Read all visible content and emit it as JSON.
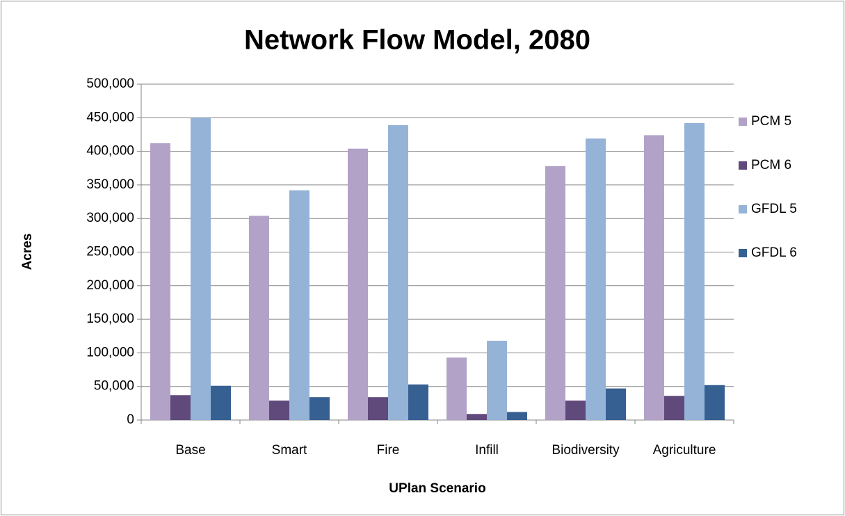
{
  "chart_data": {
    "type": "bar",
    "title": "Network Flow Model, 2080",
    "x_label": "UPlan Scenario",
    "y_label": "Acres",
    "categories": [
      "Base",
      "Smart",
      "Fire",
      "Infill",
      "Biodiversity",
      "Agriculture"
    ],
    "series": [
      {
        "name": "PCM 5",
        "color": "#b3a2c7",
        "values": [
          412000,
          304000,
          404000,
          93000,
          378000,
          424000
        ]
      },
      {
        "name": "PCM 6",
        "color": "#604a7b",
        "values": [
          37000,
          29000,
          34000,
          9000,
          29000,
          36000
        ]
      },
      {
        "name": "GFDL 5",
        "color": "#95b3d7",
        "values": [
          450000,
          342000,
          439000,
          118000,
          419000,
          442000
        ]
      },
      {
        "name": "GFDL 6",
        "color": "#376092",
        "values": [
          51000,
          34000,
          53000,
          12000,
          47000,
          52000
        ]
      }
    ],
    "ylim": [
      0,
      500000
    ],
    "yticks": [
      0,
      {
        "value": 50000,
        "label": "50,000"
      },
      {
        "value": 100000,
        "label": "100,000"
      },
      {
        "value": 150000,
        "label": "150,000"
      },
      {
        "value": 200000,
        "label": "200,000"
      },
      {
        "value": 250000,
        "label": "250,000"
      },
      {
        "value": 300000,
        "label": "300,000"
      },
      {
        "value": 350000,
        "label": "350,000"
      },
      {
        "value": 400000,
        "label": "400,000"
      },
      {
        "value": 450000,
        "label": "450,000"
      },
      {
        "value": 500000,
        "label": "500,000"
      }
    ],
    "grid": true,
    "legend": "right"
  }
}
